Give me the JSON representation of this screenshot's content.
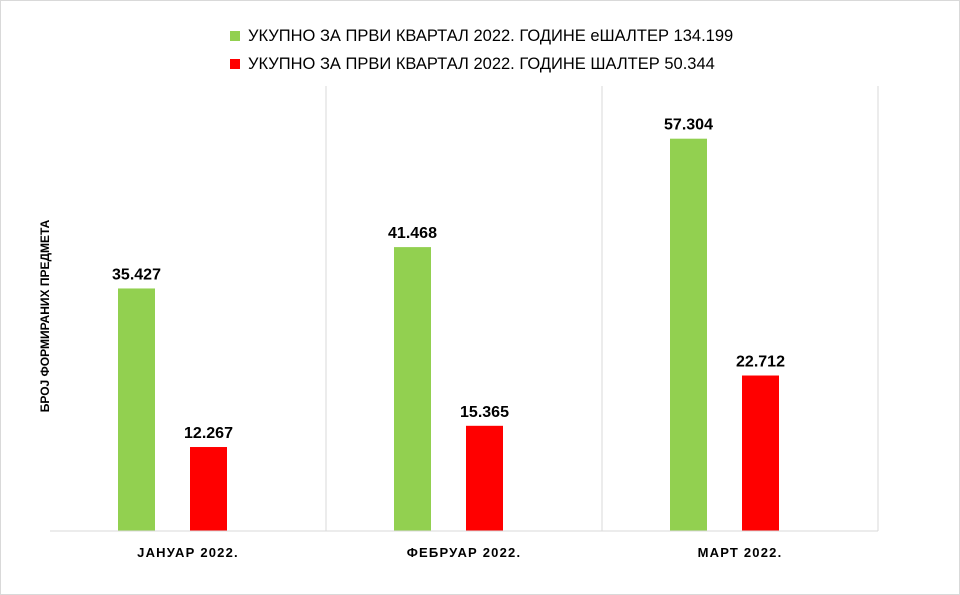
{
  "chart_data": {
    "type": "bar",
    "categories": [
      "ЈАНУАР 2022.",
      "ФЕБРУАР 2022.",
      "МАРТ 2022."
    ],
    "series": [
      {
        "name": "УКУПНО ЗА ПРВИ КВАРТАЛ 2022. ГОДИНЕ еШАЛТЕР 134.199",
        "color": "#92d050",
        "values": [
          35427,
          41468,
          57304
        ],
        "labels": [
          "35.427",
          "41.468",
          "57.304"
        ]
      },
      {
        "name": "УКУПНО ЗА ПРВИ КВАРТАЛ 2022. ГОДИНЕ ШАЛТЕР 50.344",
        "color": "#ff0000",
        "values": [
          12267,
          15365,
          22712
        ],
        "labels": [
          "12.267",
          "15.365",
          "22.712"
        ]
      }
    ],
    "ylabel": "БРОЈ ФОРМИРАНИХ ПРЕДМЕТА",
    "ylim": [
      0,
      65000
    ],
    "legend_position": "top",
    "grid": "vertical-separators"
  }
}
